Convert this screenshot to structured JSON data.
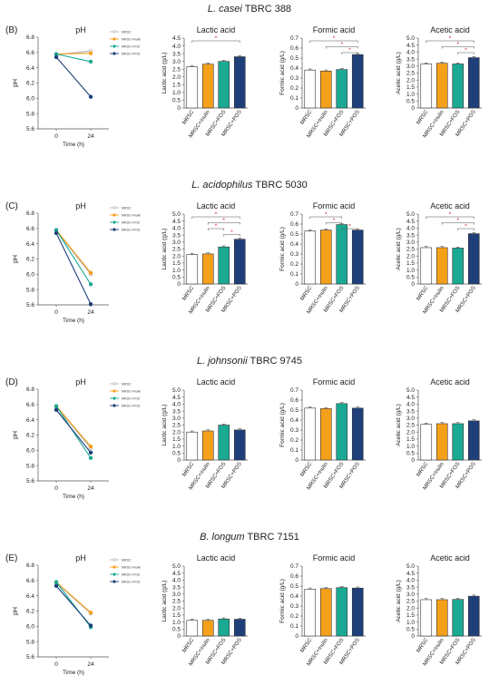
{
  "figure": {
    "bar_labels": [
      "MRSC",
      "MRSC+Inulin",
      "MRSC+FOS",
      "MRSC+POS"
    ],
    "colors": {
      "MRSC": "#ffffff",
      "MRSC+Inulin": "#f5a01a",
      "MRSC+FOS": "#1aaa94",
      "MRSC+POS": "#1f3f7a",
      "line_MRSC": "#b0b0b0",
      "sig": "#e03030",
      "text": "#222222"
    },
    "legend_labels": [
      "MRSC",
      "MRSC+Inulin",
      "MRSC+FOS",
      "MRSC+POS"
    ],
    "panels": [
      {
        "id": "B",
        "label": "(B)",
        "organism_italic": "L. casei",
        "strain": "TBRC 388",
        "ph_title": "pH",
        "ph_xlabel": "Time (h)",
        "ph_ylabel": "pH",
        "lactic_title": "Lactic acid",
        "lactic_ylabel": "Lactic acid (g/L)",
        "formic_title": "Formic acid",
        "formic_ylabel": "Formic acid (g/L)",
        "acetic_title": "Acetic acid",
        "acetic_ylabel": "Acetic acid (g/L)"
      },
      {
        "id": "C",
        "label": "(C)",
        "organism_italic": "L. acidophilus",
        "strain": "TBRC 5030",
        "ph_title": "pH",
        "ph_xlabel": "Time (h)",
        "ph_ylabel": "pH",
        "lactic_title": "Lactic acid",
        "lactic_ylabel": "Lactic acid (g/L)",
        "formic_title": "Formic acid",
        "formic_ylabel": "Formic acid (g/L)",
        "acetic_title": "Acetic acid",
        "acetic_ylabel": "Acetic acid (g/L)"
      },
      {
        "id": "D",
        "label": "(D)",
        "organism_italic": "L. johnsonii",
        "strain": "TBRC 9745",
        "ph_title": "pH",
        "ph_xlabel": "Time (h)",
        "ph_ylabel": "pH",
        "lactic_title": "Lactic acid",
        "lactic_ylabel": "Lactic acid (g/L)",
        "formic_title": "Formic acid",
        "formic_ylabel": "Formic acid (g/L)",
        "acetic_title": "Acetic acid",
        "acetic_ylabel": "Acetic acid (g/L)"
      },
      {
        "id": "E",
        "label": "(E)",
        "organism_italic": "B. longum",
        "strain": "TBRC 7151",
        "ph_title": "pH",
        "ph_xlabel": "Time (h)",
        "ph_ylabel": "pH",
        "lactic_title": "Lactic acid",
        "lactic_ylabel": "Lactic acid (g/L)",
        "formic_title": "Formic acid",
        "formic_ylabel": "Formic acid (g/L)",
        "acetic_title": "Acetic acid",
        "acetic_ylabel": "Acetic acid (g/L)"
      }
    ]
  },
  "chart_data": [
    {
      "panel": "B",
      "kind": "ph",
      "type": "line",
      "title": "pH",
      "xlabel": "Time (h)",
      "ylabel": "pH",
      "x": [
        0,
        24
      ],
      "xticks": [
        0,
        24
      ],
      "ylim": [
        5.6,
        6.8
      ],
      "yticks": [
        5.6,
        5.8,
        6.0,
        6.2,
        6.4,
        6.6,
        6.8
      ],
      "series": [
        {
          "name": "MRSC",
          "values": [
            6.57,
            6.62
          ]
        },
        {
          "name": "MRSC+Inulin",
          "values": [
            6.58,
            6.59
          ]
        },
        {
          "name": "MRSC+FOS",
          "values": [
            6.58,
            6.48
          ]
        },
        {
          "name": "MRSC+POS",
          "values": [
            6.54,
            6.02
          ]
        }
      ]
    },
    {
      "panel": "B",
      "kind": "bar",
      "type": "bar",
      "title": "Lactic acid",
      "ylabel": "Lactic acid (g/L)",
      "categories": [
        "MRSC",
        "MRSC+Inulin",
        "MRSC+FOS",
        "MRSC+POS"
      ],
      "values": [
        2.65,
        2.82,
        3.0,
        3.3
      ],
      "ylim": [
        0,
        4.5
      ],
      "yticks": [
        0,
        0.5,
        1.0,
        1.5,
        2.0,
        2.5,
        3.0,
        3.5,
        4.0,
        4.5
      ],
      "significance": [
        [
          0,
          3
        ]
      ]
    },
    {
      "panel": "B",
      "kind": "bar",
      "type": "bar",
      "title": "Formic acid",
      "ylabel": "Formic acid (g/L)",
      "categories": [
        "MRSC",
        "MRSC+Inulin",
        "MRSC+FOS",
        "MRSC+POS"
      ],
      "values": [
        0.38,
        0.37,
        0.385,
        0.535
      ],
      "ylim": [
        0,
        0.7
      ],
      "yticks": [
        0,
        0.1,
        0.2,
        0.3,
        0.4,
        0.5,
        0.6,
        0.7
      ],
      "significance": [
        [
          0,
          3
        ],
        [
          1,
          3
        ],
        [
          2,
          3
        ]
      ]
    },
    {
      "panel": "B",
      "kind": "bar",
      "type": "bar",
      "title": "Acetic acid",
      "ylabel": "Acetic acid (g/L)",
      "categories": [
        "MRSC",
        "MRSC+Inulin",
        "MRSC+FOS",
        "MRSC+POS"
      ],
      "values": [
        3.15,
        3.2,
        3.15,
        3.6
      ],
      "ylim": [
        0,
        5.0
      ],
      "yticks": [
        0,
        0.5,
        1.0,
        1.5,
        2.0,
        2.5,
        3.0,
        3.5,
        4.0,
        4.5,
        5.0
      ],
      "significance": [
        [
          0,
          3
        ],
        [
          1,
          3
        ],
        [
          2,
          3
        ]
      ]
    },
    {
      "panel": "C",
      "kind": "ph",
      "type": "line",
      "title": "pH",
      "xlabel": "Time (h)",
      "ylabel": "pH",
      "x": [
        0,
        24
      ],
      "xticks": [
        0,
        24
      ],
      "ylim": [
        5.6,
        6.8
      ],
      "yticks": [
        5.6,
        5.8,
        6.0,
        6.2,
        6.4,
        6.6,
        6.8
      ],
      "series": [
        {
          "name": "MRSC",
          "values": [
            6.57,
            6.0
          ]
        },
        {
          "name": "MRSC+Inulin",
          "values": [
            6.58,
            6.02
          ]
        },
        {
          "name": "MRSC+FOS",
          "values": [
            6.58,
            5.87
          ]
        },
        {
          "name": "MRSC+POS",
          "values": [
            6.54,
            5.61
          ]
        }
      ]
    },
    {
      "panel": "C",
      "kind": "bar",
      "type": "bar",
      "title": "Lactic acid",
      "ylabel": "Lactic acid (g/L)",
      "categories": [
        "MRSC",
        "MRSC+Inulin",
        "MRSC+FOS",
        "MRSC+POS"
      ],
      "values": [
        2.1,
        2.15,
        2.65,
        3.2
      ],
      "ylim": [
        0,
        5.0
      ],
      "yticks": [
        0,
        0.5,
        1.0,
        1.5,
        2.0,
        2.5,
        3.0,
        3.5,
        4.0,
        4.5,
        5.0
      ],
      "significance": [
        [
          0,
          3
        ],
        [
          1,
          3
        ],
        [
          1,
          2
        ],
        [
          2,
          3
        ]
      ]
    },
    {
      "panel": "C",
      "kind": "bar",
      "type": "bar",
      "title": "Formic acid",
      "ylabel": "Formic acid (g/L)",
      "categories": [
        "MRSC",
        "MRSC+Inulin",
        "MRSC+FOS",
        "MRSC+POS"
      ],
      "values": [
        0.53,
        0.54,
        0.595,
        0.54
      ],
      "ylim": [
        0,
        0.7
      ],
      "yticks": [
        0,
        0.1,
        0.2,
        0.3,
        0.4,
        0.5,
        0.6,
        0.7
      ],
      "significance": [
        [
          0,
          2
        ],
        [
          1,
          2
        ],
        [
          2,
          3
        ]
      ]
    },
    {
      "panel": "C",
      "kind": "bar",
      "type": "bar",
      "title": "Acetic acid",
      "ylabel": "Acetic acid (g/L)",
      "categories": [
        "MRSC",
        "MRSC+Inulin",
        "MRSC+FOS",
        "MRSC+POS"
      ],
      "values": [
        2.6,
        2.6,
        2.57,
        3.6
      ],
      "ylim": [
        0,
        5.0
      ],
      "yticks": [
        0,
        0.5,
        1.0,
        1.5,
        2.0,
        2.5,
        3.0,
        3.5,
        4.0,
        4.5,
        5.0
      ],
      "significance": [
        [
          0,
          3
        ],
        [
          1,
          3
        ],
        [
          2,
          3
        ]
      ]
    },
    {
      "panel": "D",
      "kind": "ph",
      "type": "line",
      "title": "pH",
      "xlabel": "Time (h)",
      "ylabel": "pH",
      "x": [
        0,
        24
      ],
      "xticks": [
        0,
        24
      ],
      "ylim": [
        5.6,
        6.8
      ],
      "yticks": [
        5.6,
        5.8,
        6.0,
        6.2,
        6.4,
        6.6,
        6.8
      ],
      "series": [
        {
          "name": "MRSC",
          "values": [
            6.57,
            6.03
          ]
        },
        {
          "name": "MRSC+Inulin",
          "values": [
            6.58,
            6.05
          ]
        },
        {
          "name": "MRSC+FOS",
          "values": [
            6.58,
            5.9
          ]
        },
        {
          "name": "MRSC+POS",
          "values": [
            6.53,
            5.97
          ]
        }
      ]
    },
    {
      "panel": "D",
      "kind": "bar",
      "type": "bar",
      "title": "Lactic acid",
      "ylabel": "Lactic acid (g/L)",
      "categories": [
        "MRSC",
        "MRSC+Inulin",
        "MRSC+FOS",
        "MRSC+POS"
      ],
      "values": [
        2.0,
        2.08,
        2.5,
        2.15
      ],
      "ylim": [
        0,
        5.0
      ],
      "yticks": [
        0,
        0.5,
        1.0,
        1.5,
        2.0,
        2.5,
        3.0,
        3.5,
        4.0,
        4.5,
        5.0
      ],
      "significance": []
    },
    {
      "panel": "D",
      "kind": "bar",
      "type": "bar",
      "title": "Formic acid",
      "ylabel": "Formic acid (g/L)",
      "categories": [
        "MRSC",
        "MRSC+Inulin",
        "MRSC+FOS",
        "MRSC+POS"
      ],
      "values": [
        0.52,
        0.515,
        0.565,
        0.52
      ],
      "ylim": [
        0,
        0.7
      ],
      "yticks": [
        0,
        0.1,
        0.2,
        0.3,
        0.4,
        0.5,
        0.6,
        0.7
      ],
      "significance": []
    },
    {
      "panel": "D",
      "kind": "bar",
      "type": "bar",
      "title": "Acetic acid",
      "ylabel": "Acetic acid (g/L)",
      "categories": [
        "MRSC",
        "MRSC+Inulin",
        "MRSC+FOS",
        "MRSC+POS"
      ],
      "values": [
        2.55,
        2.6,
        2.6,
        2.8
      ],
      "ylim": [
        0,
        5.0
      ],
      "yticks": [
        0,
        0.5,
        1.0,
        1.5,
        2.0,
        2.5,
        3.0,
        3.5,
        4.0,
        4.5,
        5.0
      ],
      "significance": []
    },
    {
      "panel": "E",
      "kind": "ph",
      "type": "line",
      "title": "pH",
      "xlabel": "Time (h)",
      "ylabel": "pH",
      "x": [
        0,
        24
      ],
      "xticks": [
        0,
        24
      ],
      "ylim": [
        5.6,
        6.8
      ],
      "yticks": [
        5.6,
        5.8,
        6.0,
        6.2,
        6.4,
        6.6,
        6.8
      ],
      "series": [
        {
          "name": "MRSC",
          "values": [
            6.57,
            6.17
          ]
        },
        {
          "name": "MRSC+Inulin",
          "values": [
            6.58,
            6.18
          ]
        },
        {
          "name": "MRSC+FOS",
          "values": [
            6.58,
            5.99
          ]
        },
        {
          "name": "MRSC+POS",
          "values": [
            6.53,
            6.01
          ]
        }
      ]
    },
    {
      "panel": "E",
      "kind": "bar",
      "type": "bar",
      "title": "Lactic acid",
      "ylabel": "Lactic acid (g/L)",
      "categories": [
        "MRSC",
        "MRSC+Inulin",
        "MRSC+FOS",
        "MRSC+POS"
      ],
      "values": [
        1.12,
        1.12,
        1.22,
        1.2
      ],
      "ylim": [
        0,
        5.0
      ],
      "yticks": [
        0,
        0.5,
        1.0,
        1.5,
        2.0,
        2.5,
        3.0,
        3.5,
        4.0,
        4.5,
        5.0
      ],
      "significance": []
    },
    {
      "panel": "E",
      "kind": "bar",
      "type": "bar",
      "title": "Formic acid",
      "ylabel": "Formic acid (g/L)",
      "categories": [
        "MRSC",
        "MRSC+Inulin",
        "MRSC+FOS",
        "MRSC+POS"
      ],
      "values": [
        0.47,
        0.475,
        0.485,
        0.48
      ],
      "ylim": [
        0,
        0.7
      ],
      "yticks": [
        0,
        0.1,
        0.2,
        0.3,
        0.4,
        0.5,
        0.6,
        0.7
      ],
      "significance": []
    },
    {
      "panel": "E",
      "kind": "bar",
      "type": "bar",
      "title": "Acetic acid",
      "ylabel": "Acetic acid (g/L)",
      "categories": [
        "MRSC",
        "MRSC+Inulin",
        "MRSC+FOS",
        "MRSC+POS"
      ],
      "values": [
        2.6,
        2.6,
        2.62,
        2.85
      ],
      "ylim": [
        0,
        5.0
      ],
      "yticks": [
        0,
        0.5,
        1.0,
        1.5,
        2.0,
        2.5,
        3.0,
        3.5,
        4.0,
        4.5,
        5.0
      ],
      "significance": []
    }
  ]
}
